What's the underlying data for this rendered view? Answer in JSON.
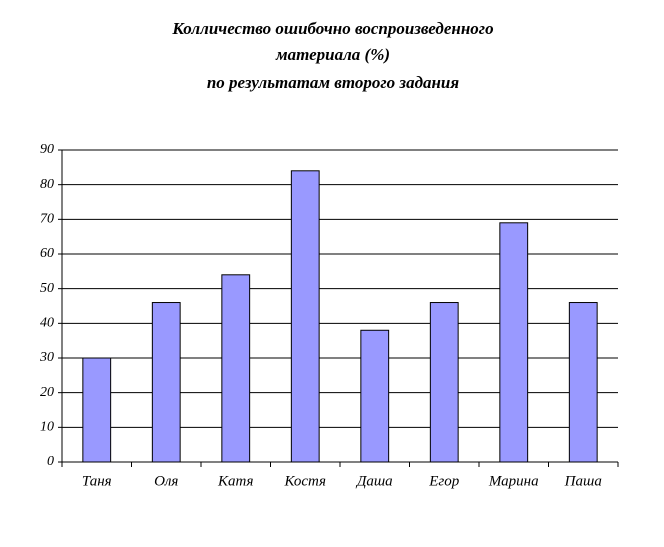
{
  "chart_data": {
    "type": "bar",
    "title": [
      "Колличество ошибочно воспроизведенного",
      "материала (%)",
      "по результатам второго задания"
    ],
    "categories": [
      "Таня",
      "Оля",
      "Катя",
      "Костя",
      "Даша",
      "Егор",
      "Марина",
      "Паша"
    ],
    "values": [
      30,
      46,
      54,
      84,
      38,
      46,
      69,
      46
    ],
    "color": "#9999ff",
    "ylim": [
      0,
      90
    ],
    "yticks": [
      0,
      10,
      20,
      30,
      40,
      50,
      60,
      70,
      80,
      90
    ],
    "grid": true
  }
}
